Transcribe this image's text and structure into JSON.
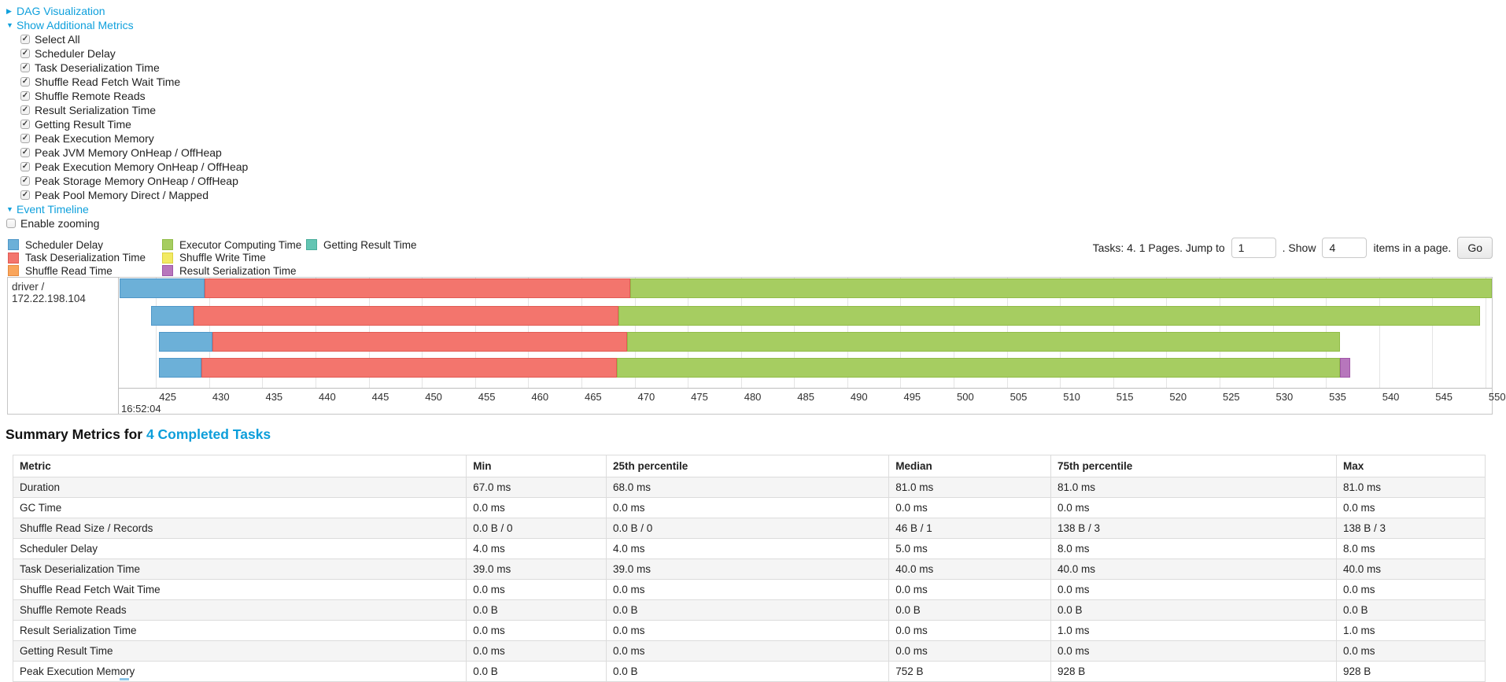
{
  "controls": {
    "dag": {
      "label": "DAG Visualization",
      "arrow": "▶"
    },
    "metrics_toggle": {
      "label": "Show Additional Metrics",
      "arrow": "▼"
    },
    "metric_checkboxes": [
      {
        "label": "Select All",
        "checked": true
      },
      {
        "label": "Scheduler Delay",
        "checked": true
      },
      {
        "label": "Task Deserialization Time",
        "checked": true
      },
      {
        "label": "Shuffle Read Fetch Wait Time",
        "checked": true
      },
      {
        "label": "Shuffle Remote Reads",
        "checked": true
      },
      {
        "label": "Result Serialization Time",
        "checked": true
      },
      {
        "label": "Getting Result Time",
        "checked": true
      },
      {
        "label": "Peak Execution Memory",
        "checked": true
      },
      {
        "label": "Peak JVM Memory OnHeap / OffHeap",
        "checked": true
      },
      {
        "label": "Peak Execution Memory OnHeap / OffHeap",
        "checked": true
      },
      {
        "label": "Peak Storage Memory OnHeap / OffHeap",
        "checked": true
      },
      {
        "label": "Peak Pool Memory Direct / Mapped",
        "checked": true
      }
    ],
    "event_timeline": {
      "label": "Event Timeline",
      "arrow": "▼"
    },
    "enable_zooming": {
      "label": "Enable zooming",
      "checked": false
    }
  },
  "legend": {
    "items": [
      {
        "label": "Scheduler Delay",
        "fill": "#6CB0D8",
        "border": "#4F97C8"
      },
      {
        "label": "Task Deserialization Time",
        "fill": "#F3756D",
        "border": "#E15B54"
      },
      {
        "label": "Shuffle Read Time",
        "fill": "#F9A55C",
        "border": "#E58A3E"
      },
      {
        "label": "Executor Computing Time",
        "fill": "#A6CD61",
        "border": "#91BC48"
      },
      {
        "label": "Shuffle Write Time",
        "fill": "#F2EA63",
        "border": "#DCD23F"
      },
      {
        "label": "Result Serialization Time",
        "fill": "#B776BC",
        "border": "#A055A8"
      },
      {
        "label": "Getting Result Time",
        "fill": "#63C5B3",
        "border": "#49AD9A"
      }
    ]
  },
  "pagination": {
    "text_before_jump": "Tasks: 4. 1 Pages. Jump to",
    "jump_value": "1",
    "text_between": ". Show",
    "show_value": "4",
    "text_after": "items in a page.",
    "go_label": "Go"
  },
  "chart_data": {
    "type": "bar",
    "subtype": "horizontal-stacked-task-timeline",
    "title": "Event Timeline",
    "group_label": "driver / 172.22.198.104",
    "x_axis": {
      "start_time_label": "16:52:04",
      "unit": "ms within 16:52:04",
      "domain": [
        421.5,
        550.6
      ],
      "ticks": [
        425,
        430,
        435,
        440,
        445,
        450,
        455,
        460,
        465,
        470,
        475,
        480,
        485,
        490,
        495,
        500,
        505,
        510,
        515,
        520,
        525,
        530,
        535,
        540,
        545,
        550
      ]
    },
    "legend_position": "top-left",
    "grid": true,
    "tasks": [
      {
        "start": 421.6,
        "segments": [
          {
            "metric": "Scheduler Delay",
            "ms": 8
          },
          {
            "metric": "Task Deserialization Time",
            "ms": 40
          },
          {
            "metric": "Executor Computing Time",
            "ms": 81
          }
        ]
      },
      {
        "start": 424.5,
        "segments": [
          {
            "metric": "Scheduler Delay",
            "ms": 4
          },
          {
            "metric": "Task Deserialization Time",
            "ms": 40
          },
          {
            "metric": "Executor Computing Time",
            "ms": 81
          }
        ]
      },
      {
        "start": 425.3,
        "segments": [
          {
            "metric": "Scheduler Delay",
            "ms": 5
          },
          {
            "metric": "Task Deserialization Time",
            "ms": 39
          },
          {
            "metric": "Executor Computing Time",
            "ms": 67
          }
        ]
      },
      {
        "start": 425.3,
        "segments": [
          {
            "metric": "Scheduler Delay",
            "ms": 4
          },
          {
            "metric": "Task Deserialization Time",
            "ms": 39
          },
          {
            "metric": "Executor Computing Time",
            "ms": 68
          },
          {
            "metric": "Result Serialization Time",
            "ms": 1
          }
        ]
      }
    ]
  },
  "summary": {
    "heading_prefix": "Summary Metrics for ",
    "heading_link": "4 Completed Tasks",
    "table": {
      "headers": [
        "Metric",
        "Min",
        "25th percentile",
        "Median",
        "75th percentile",
        "Max"
      ],
      "rows": [
        [
          "Duration",
          "67.0 ms",
          "68.0 ms",
          "81.0 ms",
          "81.0 ms",
          "81.0 ms"
        ],
        [
          "GC Time",
          "0.0 ms",
          "0.0 ms",
          "0.0 ms",
          "0.0 ms",
          "0.0 ms"
        ],
        [
          "Shuffle Read Size / Records",
          "0.0 B / 0",
          "0.0 B / 0",
          "46 B / 1",
          "138 B / 3",
          "138 B / 3"
        ],
        [
          "Scheduler Delay",
          "4.0 ms",
          "4.0 ms",
          "5.0 ms",
          "8.0 ms",
          "8.0 ms"
        ],
        [
          "Task Deserialization Time",
          "39.0 ms",
          "39.0 ms",
          "40.0 ms",
          "40.0 ms",
          "40.0 ms"
        ],
        [
          "Shuffle Read Fetch Wait Time",
          "0.0 ms",
          "0.0 ms",
          "0.0 ms",
          "0.0 ms",
          "0.0 ms"
        ],
        [
          "Shuffle Remote Reads",
          "0.0 B",
          "0.0 B",
          "0.0 B",
          "0.0 B",
          "0.0 B"
        ],
        [
          "Result Serialization Time",
          "0.0 ms",
          "0.0 ms",
          "0.0 ms",
          "1.0 ms",
          "1.0 ms"
        ],
        [
          "Getting Result Time",
          "0.0 ms",
          "0.0 ms",
          "0.0 ms",
          "0.0 ms",
          "0.0 ms"
        ],
        [
          "Peak Execution Memory",
          "0.0 B",
          "0.0 B",
          "752 B",
          "928 B",
          "928 B"
        ]
      ]
    }
  }
}
